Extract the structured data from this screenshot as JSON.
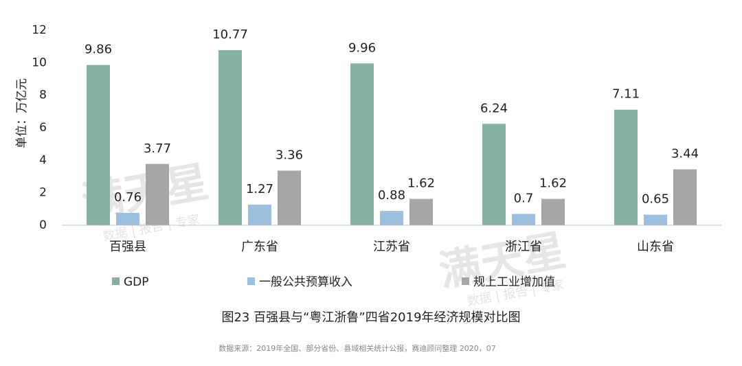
{
  "chart_data": {
    "type": "bar",
    "y_label": "单位：万亿元",
    "caption": "图23 百强县与“粤江浙鲁”四省2019年经济规模对比图",
    "source": "数据来源：2019年全国、部分省份、县域相关统计公报，赛迪顾问整理  2020，07",
    "watermark": "满天星",
    "watermark_sub": "数据 | 报告 | 专家",
    "categories": [
      "百强县",
      "广东省",
      "江苏省",
      "浙江省",
      "山东省"
    ],
    "series": [
      {
        "name": "GDP",
        "color": "#86b0a3",
        "values": [
          9.86,
          10.77,
          9.96,
          6.24,
          7.11
        ]
      },
      {
        "name": "一般公共预算收入",
        "color": "#9dc0e0",
        "values": [
          0.76,
          1.27,
          0.88,
          0.7,
          0.65
        ]
      },
      {
        "name": "规上工业增加值",
        "color": "#a6a6a6",
        "values": [
          3.77,
          3.36,
          1.62,
          1.62,
          3.44
        ]
      }
    ],
    "ylim": [
      0,
      12
    ],
    "yticks": [
      0,
      2,
      4,
      6,
      8,
      10,
      12
    ],
    "grid": false
  }
}
